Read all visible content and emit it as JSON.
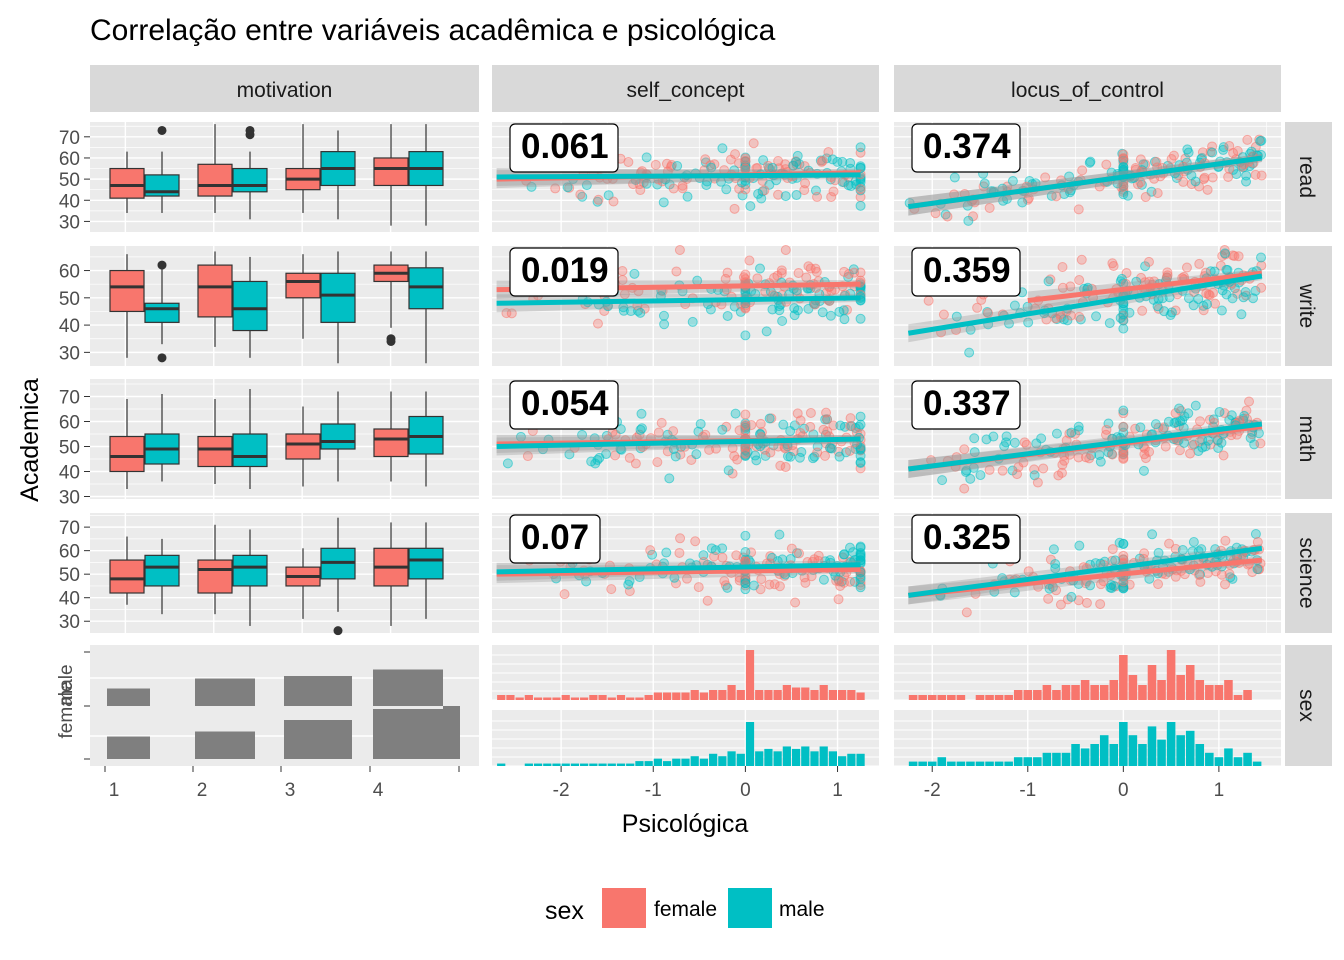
{
  "title": "Correlação entre variáveis acadêmica e psicológica",
  "colors": {
    "female": "#F8766D",
    "male": "#00BFC4",
    "panel": "#EBEBEB",
    "strip": "#D9D9D9",
    "grey_bar": "#7F7F7F"
  },
  "chart_data": {
    "type": "scatter-matrix",
    "title": "Correlação entre variáveis acadêmica e psicológica",
    "xlabel": "Psicológica",
    "ylabel": "Academica",
    "columns": [
      "motivation",
      "self_concept",
      "locus_of_control"
    ],
    "rows": [
      "read",
      "write",
      "math",
      "science",
      "sex"
    ],
    "legend": {
      "title": "sex",
      "entries": [
        "female",
        "male"
      ],
      "position": "bottom"
    },
    "grid": true,
    "motivation_ticks": [
      "1",
      "2",
      "3",
      "4"
    ],
    "self_concept_ticks": [
      "-2",
      "-1",
      "0",
      "1"
    ],
    "self_concept_xlim": [
      -2.75,
      1.45
    ],
    "locus_ticks": [
      "-2",
      "-1",
      "0",
      "1"
    ],
    "locus_xlim": [
      -2.4,
      1.65
    ],
    "sex_ticks": [
      "female",
      "male"
    ],
    "academic_rows": [
      {
        "name": "read",
        "ticks": [
          "30",
          "40",
          "50",
          "60",
          "70"
        ],
        "ylim": [
          25,
          77
        ],
        "box": [
          {
            "female": [
              34,
              41,
              47,
              55,
              63
            ],
            "male": [
              34,
              42,
              44,
              52,
              63
            ],
            "male_out": [
              73
            ]
          },
          {
            "female": [
              34,
              42,
              47,
              57,
              76
            ],
            "male": [
              31,
              44,
              47,
              55,
              63
            ],
            "male_out": [
              71,
              73
            ]
          },
          {
            "female": [
              34,
              45,
              50,
              55,
              76
            ],
            "male": [
              31,
              47,
              55,
              63,
              73
            ],
            "male_out": []
          },
          {
            "female": [
              28,
              47,
              55,
              60,
              76
            ],
            "male": [
              28,
              47,
              55,
              63,
              76
            ],
            "male_out": []
          }
        ],
        "self_concept": {
          "corr": "0.061",
          "female": [
            [
              -2.7,
              50
            ],
            [
              1.25,
              53
            ]
          ],
          "male": [
            [
              -2.7,
              51
            ],
            [
              1.25,
              52
            ]
          ]
        },
        "locus": {
          "corr": "0.374",
          "female": [
            [
              -2.25,
              37
            ],
            [
              1.45,
              60
            ]
          ],
          "male": [
            [
              -2.25,
              37
            ],
            [
              1.45,
              60
            ]
          ]
        }
      },
      {
        "name": "write",
        "ticks": [
          "30",
          "40",
          "50",
          "60"
        ],
        "ylim": [
          25,
          69
        ],
        "box": [
          {
            "female": [
              28,
              45,
              54,
              60,
              66
            ],
            "male": [
              33,
              41,
              46,
              48,
              62
            ],
            "male_out": [
              62,
              28
            ]
          },
          {
            "female": [
              32,
              43,
              54,
              62,
              67
            ],
            "male": [
              28,
              38,
              46,
              56,
              65
            ],
            "male_out": []
          },
          {
            "female": [
              35,
              50,
              56,
              59,
              66
            ],
            "male": [
              26,
              41,
              51,
              59,
              67
            ],
            "male_out": []
          },
          {
            "female": [
              39,
              56,
              59,
              62,
              67
            ],
            "male": [
              26,
              46,
              54,
              61,
              67
            ],
            "female_out": [
              34,
              35
            ]
          }
        ],
        "self_concept": {
          "corr": "0.019",
          "female": [
            [
              -2.7,
              53
            ],
            [
              1.25,
              55
            ]
          ],
          "male": [
            [
              -2.7,
              48
            ],
            [
              1.25,
              50
            ]
          ]
        },
        "locus": {
          "corr": "0.359",
          "female": [
            [
              -1.0,
              49
            ],
            [
              1.45,
              59
            ]
          ],
          "male": [
            [
              -2.25,
              37
            ],
            [
              1.45,
              58
            ]
          ]
        }
      },
      {
        "name": "math",
        "ticks": [
          "30",
          "40",
          "50",
          "60",
          "70"
        ],
        "ylim": [
          29,
          77
        ],
        "box": [
          {
            "female": [
              33,
              40,
              46,
              54,
              69
            ],
            "male": [
              36,
              43,
              49,
              55,
              71
            ],
            "male_out": []
          },
          {
            "female": [
              35,
              42,
              49,
              54,
              69
            ],
            "male": [
              33,
              42,
              46,
              55,
              73
            ],
            "male_out": []
          },
          {
            "female": [
              34,
              45,
              51,
              55,
              66
            ],
            "male": [
              36,
              49,
              52,
              59,
              72
            ],
            "male_out": []
          },
          {
            "female": [
              36,
              46,
              53,
              57,
              72
            ],
            "male": [
              34,
              47,
              54,
              62,
              72
            ],
            "male_out": []
          }
        ],
        "self_concept": {
          "corr": "0.054",
          "female": [
            [
              -2.7,
              51
            ],
            [
              1.25,
              53
            ]
          ],
          "male": [
            [
              -2.7,
              50
            ],
            [
              1.25,
              53
            ]
          ]
        },
        "locus": {
          "corr": "0.337",
          "female": [
            [
              -2.25,
              41
            ],
            [
              1.45,
              58
            ]
          ],
          "male": [
            [
              -2.25,
              41
            ],
            [
              1.45,
              59
            ]
          ]
        }
      },
      {
        "name": "science",
        "ticks": [
          "30",
          "40",
          "50",
          "60",
          "70"
        ],
        "ylim": [
          25,
          76
        ],
        "box": [
          {
            "female": [
              37,
              42,
              48,
              56,
              66
            ],
            "male": [
              33,
              45,
              53,
              58,
              65
            ],
            "male_out": []
          },
          {
            "female": [
              33,
              42,
              52,
              56,
              71
            ],
            "male": [
              28,
              45,
              53,
              58,
              69
            ],
            "male_out": []
          },
          {
            "female": [
              31,
              45,
              49,
              53,
              61
            ],
            "male": [
              34,
              48,
              55,
              61,
              74
            ],
            "male_out": [
              26
            ]
          },
          {
            "female": [
              28,
              45,
              53,
              61,
              72
            ],
            "male": [
              31,
              48,
              56,
              61,
              72
            ],
            "male_out": []
          }
        ],
        "self_concept": {
          "corr": "0.07",
          "female": [
            [
              -2.7,
              50
            ],
            [
              1.25,
              52
            ]
          ],
          "male": [
            [
              -2.7,
              51
            ],
            [
              1.25,
              54
            ]
          ]
        },
        "locus": {
          "corr": "0.325",
          "female": [
            [
              -2.25,
              41
            ],
            [
              1.45,
              56
            ]
          ],
          "male": [
            [
              -2.25,
              41
            ],
            [
              1.45,
              61
            ]
          ]
        }
      }
    ],
    "sex_bar": {
      "widths": [
        0.5,
        0.66,
        0.83,
        1.0
      ],
      "female_counts": [
        0.35,
        0.55,
        0.6,
        0.73
      ],
      "male_counts": [
        0.45,
        0.55,
        0.78,
        1.0
      ]
    },
    "hist_self_concept": {
      "x": [
        -2.65,
        -2.55,
        -2.45,
        -2.35,
        -2.25,
        -2.15,
        -2.05,
        -1.95,
        -1.85,
        -1.75,
        -1.65,
        -1.55,
        -1.45,
        -1.35,
        -1.25,
        -1.15,
        -1.05,
        -0.95,
        -0.85,
        -0.75,
        -0.65,
        -0.55,
        -0.45,
        -0.35,
        -0.25,
        -0.15,
        -0.05,
        0.05,
        0.15,
        0.25,
        0.35,
        0.45,
        0.55,
        0.65,
        0.75,
        0.85,
        0.95,
        1.05,
        1.15,
        1.25
      ],
      "female": [
        2,
        2,
        1,
        2,
        1,
        1,
        1,
        2,
        1,
        1,
        2,
        2,
        1,
        2,
        1,
        1,
        2,
        3,
        3,
        3,
        3,
        4,
        3,
        4,
        4,
        6,
        4,
        20,
        4,
        4,
        4,
        6,
        5,
        5,
        4,
        6,
        4,
        4,
        4,
        3
      ],
      "male": [
        1,
        0,
        0,
        1,
        1,
        1,
        1,
        1,
        1,
        1,
        1,
        1,
        1,
        1,
        1,
        2,
        2,
        3,
        2,
        3,
        3,
        4,
        3,
        5,
        4,
        6,
        5,
        18,
        6,
        7,
        6,
        8,
        7,
        8,
        6,
        8,
        6,
        4,
        5,
        5
      ]
    },
    "hist_locus": {
      "x": [
        -2.2,
        -2.1,
        -2.0,
        -1.9,
        -1.8,
        -1.7,
        -1.6,
        -1.5,
        -1.4,
        -1.3,
        -1.2,
        -1.1,
        -1.0,
        -0.9,
        -0.8,
        -0.7,
        -0.6,
        -0.5,
        -0.4,
        -0.3,
        -0.2,
        -0.1,
        0.0,
        0.1,
        0.2,
        0.3,
        0.4,
        0.5,
        0.6,
        0.7,
        0.8,
        0.9,
        1.0,
        1.1,
        1.2,
        1.3,
        1.4
      ],
      "female": [
        1,
        1,
        1,
        1,
        1,
        1,
        0,
        1,
        1,
        1,
        1,
        2,
        2,
        2,
        3,
        2,
        3,
        3,
        4,
        3,
        3,
        4,
        9,
        5,
        3,
        7,
        4,
        10,
        5,
        7,
        4,
        3,
        3,
        4,
        1,
        2,
        0
      ],
      "male": [
        1,
        1,
        1,
        2,
        1,
        1,
        1,
        1,
        1,
        1,
        1,
        2,
        2,
        2,
        3,
        3,
        3,
        5,
        4,
        5,
        7,
        5,
        10,
        7,
        5,
        9,
        6,
        10,
        7,
        8,
        5,
        3,
        2,
        4,
        2,
        3,
        1
      ]
    }
  }
}
